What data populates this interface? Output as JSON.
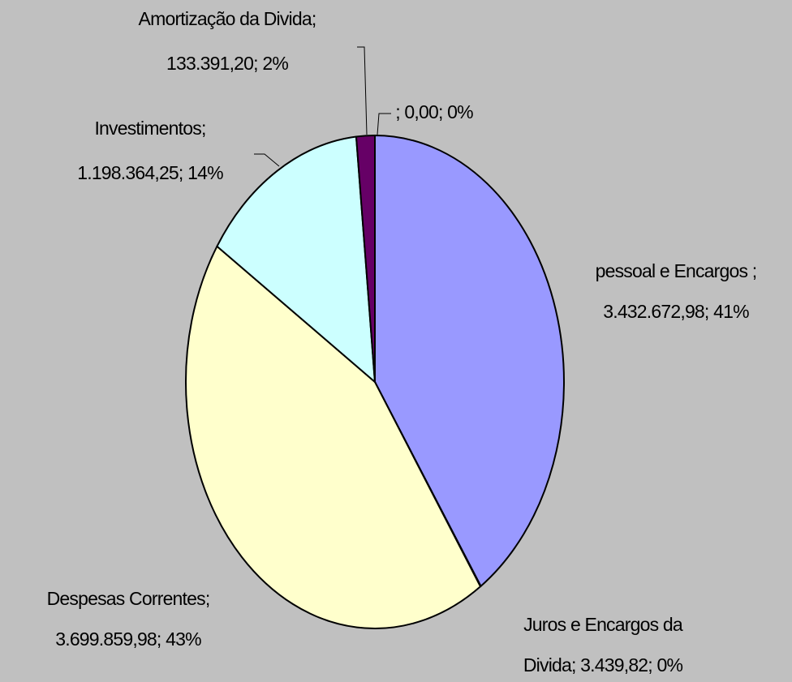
{
  "chart_data": {
    "type": "pie",
    "values": [
      3432672.98,
      3439.82,
      3699859.98,
      1198364.25,
      133391.2,
      0
    ],
    "value_labels": [
      [
        "pessoal e Encargos ;",
        "3.432.672,98; 41%"
      ],
      [
        "Juros e Encargos da",
        "Divida; 3.439,82; 0%"
      ],
      [
        "Despesas Correntes;",
        "3.699.859,98; 43%"
      ],
      [
        "Investimentos;",
        "1.198.364,25; 14%"
      ],
      [
        "Amortização da Divida;",
        "133.391,20; 2%"
      ],
      [
        "; 0,00; 0%"
      ]
    ],
    "colors": [
      "#9999ff",
      "#993366",
      "#ffffcc",
      "#ccffff",
      "#660066",
      "#ff8080"
    ]
  }
}
